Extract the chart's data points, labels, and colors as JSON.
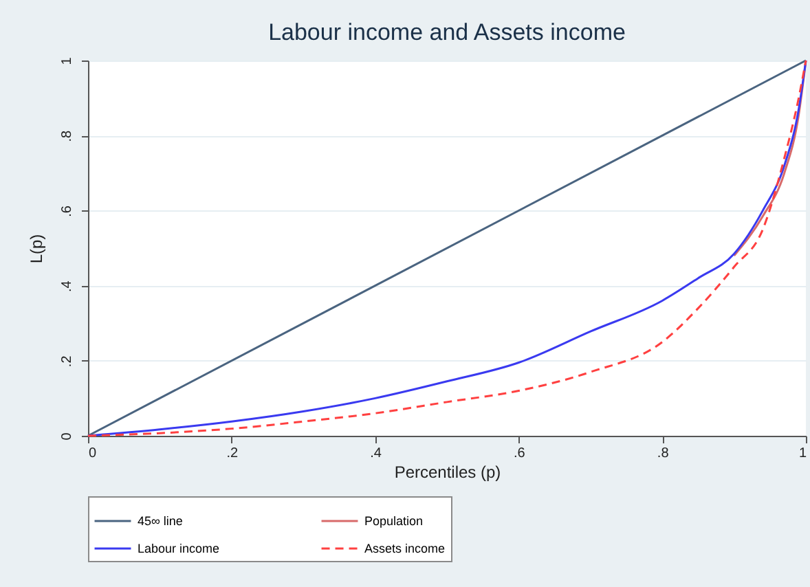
{
  "chart_data": {
    "type": "line",
    "title": "Labour income and Assets income",
    "xlabel": "Percentiles (p)",
    "ylabel": "L(p)",
    "x": [
      0,
      0.1,
      0.2,
      0.3,
      0.4,
      0.5,
      0.6,
      0.7,
      0.8,
      0.85,
      0.9,
      0.94,
      0.97,
      0.99,
      1
    ],
    "series": [
      {
        "name": "45∞ line",
        "color": "#4a6480",
        "x": [
          0,
          1
        ],
        "values": [
          0,
          1
        ],
        "line_style": "solid"
      },
      {
        "name": "Population",
        "color": "#d86a6a",
        "values": [
          null,
          null,
          null,
          null,
          null,
          null,
          null,
          null,
          null,
          null,
          0.48,
          0.585,
          0.7,
          0.855,
          1
        ],
        "line_style": "solid"
      },
      {
        "name": "Labour income",
        "color": "#3a3af0",
        "values": [
          0,
          0.017,
          0.038,
          0.065,
          0.1,
          0.145,
          0.195,
          0.278,
          0.36,
          0.42,
          0.485,
          0.6,
          0.72,
          0.87,
          1
        ],
        "line_style": "solid"
      },
      {
        "name": "Assets income",
        "color": "#ff4040",
        "values": [
          0,
          0.007,
          0.019,
          0.038,
          0.06,
          0.09,
          0.12,
          0.17,
          0.25,
          0.34,
          0.45,
          0.55,
          0.74,
          0.9,
          1
        ],
        "line_style": "dashed"
      }
    ],
    "xlim": [
      0,
      1
    ],
    "xticks": [
      0,
      {
        "value": 0.2,
        "label": ".2"
      },
      {
        "value": 0.4,
        "label": ".4"
      },
      {
        "value": 0.6,
        "label": ".6"
      },
      {
        "value": 0.8,
        "label": ".8"
      },
      1
    ],
    "ylim": [
      0,
      1
    ],
    "yticks": [
      0,
      {
        "value": 0.2,
        "label": ".2"
      },
      {
        "value": 0.4,
        "label": ".4"
      },
      {
        "value": 0.6,
        "label": ".6"
      },
      {
        "value": 0.8,
        "label": ".8"
      },
      1
    ],
    "grid": "y",
    "legend": "bottom"
  }
}
